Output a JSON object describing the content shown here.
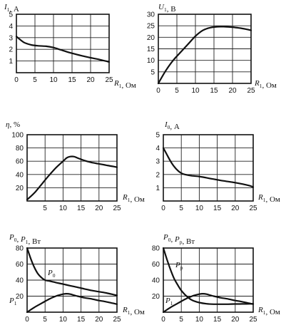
{
  "chart_data": [
    {
      "type": "line",
      "ylabel": {
        "sym": "I",
        "sub": "1",
        "unit": ", А"
      },
      "xlabel": {
        "sym": "R",
        "sub": "1",
        "unit": ", Ом"
      },
      "xlim": [
        0,
        25
      ],
      "ylim": [
        0,
        5
      ],
      "xticks": [
        0,
        5,
        10,
        15,
        20,
        25
      ],
      "yticks": [
        1,
        2,
        3,
        4,
        5
      ],
      "grid": true,
      "series": [
        {
          "x": [
            0,
            2,
            4,
            6,
            8,
            10,
            12,
            14,
            16,
            18,
            20,
            22,
            24,
            25
          ],
          "y": [
            3.1,
            2.6,
            2.38,
            2.3,
            2.26,
            2.15,
            1.95,
            1.75,
            1.58,
            1.42,
            1.28,
            1.15,
            1.0,
            0.92
          ]
        }
      ]
    },
    {
      "type": "line",
      "ylabel": {
        "sym": "U",
        "sub": "1",
        "unit": ", В"
      },
      "xlabel": {
        "sym": "R",
        "sub": "1",
        "unit": ", Ом"
      },
      "xlim": [
        0,
        25
      ],
      "ylim": [
        0,
        30
      ],
      "xticks": [
        0,
        5,
        10,
        15,
        20,
        25
      ],
      "yticks": [
        5,
        10,
        15,
        20,
        25,
        30
      ],
      "grid": true,
      "series": [
        {
          "x": [
            0,
            2,
            4,
            6,
            8,
            10,
            12,
            14,
            16,
            18,
            20,
            22,
            24,
            25
          ],
          "y": [
            0,
            5.5,
            10,
            13.5,
            17,
            20.5,
            23,
            24.2,
            24.6,
            24.6,
            24.4,
            24.0,
            23.4,
            23.0
          ]
        }
      ]
    },
    {
      "type": "line",
      "ylabel": {
        "sym": "η",
        "sub": "",
        "unit": ", %"
      },
      "xlabel": {
        "sym": "R",
        "sub": "1",
        "unit": ", Ом"
      },
      "xlim": [
        0,
        25
      ],
      "ylim": [
        0,
        100
      ],
      "xticks": [
        5,
        10,
        15,
        20,
        25
      ],
      "yticks": [
        20,
        40,
        60,
        80,
        100
      ],
      "grid": true,
      "series": [
        {
          "x": [
            0,
            2,
            4,
            6,
            8,
            10,
            11,
            12,
            13,
            14,
            16,
            18,
            20,
            22,
            24,
            25
          ],
          "y": [
            2,
            12,
            25,
            38,
            50,
            60,
            65,
            67,
            67,
            65,
            61,
            58,
            56,
            54,
            52,
            51
          ]
        }
      ]
    },
    {
      "type": "line",
      "ylabel": {
        "sym": "I",
        "sub": "0",
        "unit": ", А"
      },
      "xlabel": {
        "sym": "R",
        "sub": "1",
        "unit": ", Ом"
      },
      "xlim": [
        0,
        25
      ],
      "ylim": [
        0,
        5
      ],
      "xticks": [
        0,
        5,
        10,
        15,
        20,
        25
      ],
      "yticks": [
        1,
        2,
        3,
        4,
        5
      ],
      "grid": true,
      "series": [
        {
          "x": [
            0,
            1,
            2,
            3,
            4,
            5,
            6,
            8,
            10,
            12,
            14,
            16,
            18,
            20,
            22,
            24,
            25
          ],
          "y": [
            4.0,
            3.5,
            3.0,
            2.6,
            2.3,
            2.1,
            2.0,
            1.9,
            1.85,
            1.75,
            1.65,
            1.55,
            1.47,
            1.38,
            1.28,
            1.15,
            1.05
          ]
        }
      ]
    },
    {
      "type": "line",
      "ylabel_parts": [
        {
          "sym": "P",
          "sub": "0",
          "unit": ", "
        },
        {
          "sym": "P",
          "sub": "1",
          "unit": ", Вт"
        }
      ],
      "xlabel": {
        "sym": "R",
        "sub": "1",
        "unit": ", Ом"
      },
      "xlim": [
        0,
        25
      ],
      "ylim": [
        0,
        80
      ],
      "xticks": [
        0,
        5,
        10,
        15,
        20,
        25
      ],
      "yticks": [
        20,
        40,
        60,
        80
      ],
      "grid": true,
      "series": [
        {
          "name_sym": "P",
          "name_sub": "0",
          "x": [
            0,
            1,
            2,
            3,
            4,
            5,
            6,
            8,
            10,
            12,
            14,
            16,
            18,
            20,
            22,
            24,
            25
          ],
          "y": [
            80,
            67,
            56,
            48,
            43,
            40,
            39,
            37,
            35,
            33,
            31,
            29,
            27,
            25.5,
            24,
            22,
            21
          ]
        },
        {
          "name_sym": "P",
          "name_sub": "1",
          "x": [
            0,
            2,
            4,
            6,
            8,
            10,
            11,
            12,
            14,
            16,
            18,
            20,
            22,
            24,
            25
          ],
          "y": [
            0,
            6,
            11,
            16,
            20,
            22.5,
            23,
            22.5,
            20,
            18,
            16.5,
            14.5,
            13,
            11,
            10
          ]
        }
      ]
    },
    {
      "type": "line",
      "ylabel_parts": [
        {
          "sym": "P",
          "sub": "0",
          "unit": ", "
        },
        {
          "sym": "P",
          "sub": "p",
          "unit": ", Вт"
        }
      ],
      "xlabel": {
        "sym": "R",
        "sub": "1",
        "unit": ", Ом"
      },
      "xlim": [
        0,
        25
      ],
      "ylim": [
        0,
        80
      ],
      "xticks": [
        0,
        5,
        10,
        15,
        20,
        25
      ],
      "yticks": [
        20,
        40,
        60,
        80
      ],
      "grid": true,
      "series": [
        {
          "name_sym": "P",
          "name_sub": "p",
          "x": [
            0,
            1,
            2,
            3,
            4,
            5,
            6,
            7,
            8,
            10,
            12,
            14,
            16,
            18,
            20,
            22,
            24,
            25
          ],
          "y": [
            80,
            66,
            53,
            42,
            34,
            27,
            22,
            18,
            15,
            12,
            10.5,
            10,
            10,
            10,
            10.2,
            10.3,
            10.4,
            10.5
          ]
        },
        {
          "name_sym": "P",
          "name_sub": "1",
          "x": [
            0,
            2,
            4,
            6,
            8,
            10,
            11,
            12,
            14,
            16,
            18,
            20,
            22,
            24,
            25
          ],
          "y": [
            0,
            6,
            11,
            16,
            20,
            22.5,
            23,
            22.5,
            20,
            18,
            16.5,
            14.5,
            13,
            11,
            10
          ]
        }
      ]
    }
  ]
}
